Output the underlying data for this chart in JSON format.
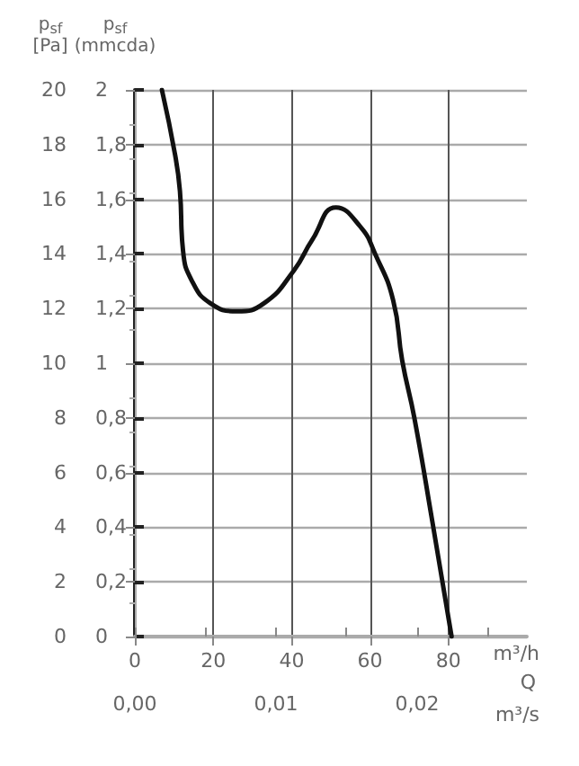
{
  "chart_data": {
    "type": "line",
    "xlabel": "m³/h",
    "x2label": "m³/s",
    "ylabel": "p$_{sf}$ [Pa]",
    "y2label": "p$_{sf}$ (mmcda)",
    "annotations": [
      "Q"
    ],
    "xlim": [
      0,
      100
    ],
    "xticks": [
      0,
      20,
      40,
      60,
      80
    ],
    "x2lim": [
      0,
      0.02778
    ],
    "x2ticks": [
      {
        "value": 0,
        "label": "0,00"
      },
      {
        "value": 0.005,
        "label": null
      },
      {
        "value": 0.01,
        "label": "0,01"
      },
      {
        "value": 0.015,
        "label": null
      },
      {
        "value": 0.02,
        "label": "0,02"
      },
      {
        "value": 0.025,
        "label": null
      }
    ],
    "ylim": [
      0,
      20
    ],
    "yticks": [
      0,
      2,
      4,
      6,
      8,
      10,
      12,
      14,
      16,
      18,
      20
    ],
    "y2lim": [
      0,
      2
    ],
    "y2ticks": [
      0,
      {
        "value": 0.2,
        "label": "0,2"
      },
      {
        "value": 0.4,
        "label": "0,4"
      },
      {
        "value": 0.6,
        "label": "0,6"
      },
      {
        "value": 0.8,
        "label": "0,8"
      },
      1,
      {
        "value": 1.2,
        "label": "1,2"
      },
      {
        "value": 1.4,
        "label": "1,4"
      },
      {
        "value": 1.6,
        "label": "1,6"
      },
      {
        "value": 1.8,
        "label": "1,8"
      },
      2
    ],
    "grid": true,
    "marker": "none",
    "line_style": "solid",
    "series": [
      {
        "color": "#111111",
        "x": [
          6.9,
          10.3,
          11.5,
          12.3,
          14.6,
          19.2,
          26,
          33,
          40.6,
          45.2,
          51.3,
          57.5,
          61.3,
          65.9,
          68.2,
          71.3,
          75.9,
          80.8
        ],
        "values": [
          20,
          17.6,
          16.3,
          14.1,
          13.0,
          12.2,
          11.9,
          12.2,
          13.4,
          14.5,
          15.7,
          15.0,
          14.0,
          12.3,
          10.1,
          8.0,
          4.2,
          0
        ]
      }
    ]
  }
}
